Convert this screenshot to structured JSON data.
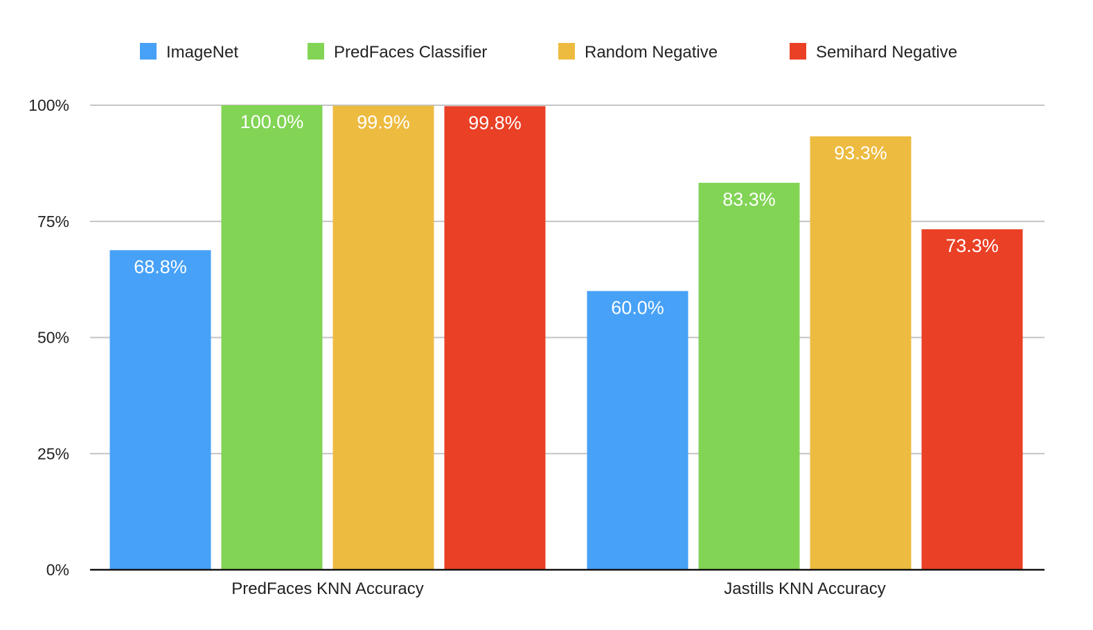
{
  "chart_data": {
    "type": "bar",
    "categories": [
      "PredFaces KNN Accuracy",
      "Jastills KNN Accuracy"
    ],
    "series": [
      {
        "name": "ImageNet",
        "color": "#47a1f7",
        "values": [
          68.8,
          60.0
        ],
        "labels": [
          "68.8%",
          "60.0%"
        ]
      },
      {
        "name": "PredFaces Classifier",
        "color": "#82d455",
        "values": [
          100.0,
          83.3
        ],
        "labels": [
          "100.0%",
          "83.3%"
        ]
      },
      {
        "name": "Random Negative",
        "color": "#edbb40",
        "values": [
          99.9,
          93.3
        ],
        "labels": [
          "99.9%",
          "93.3%"
        ]
      },
      {
        "name": "Semihard Negative",
        "color": "#e94026",
        "values": [
          99.8,
          73.3
        ],
        "labels": [
          "99.8%",
          "73.3%"
        ]
      }
    ],
    "ylim": [
      0,
      100
    ],
    "yticks": [
      0,
      25,
      50,
      75,
      100
    ],
    "ytick_labels": [
      "0%",
      "25%",
      "50%",
      "75%",
      "100%"
    ],
    "grid": true,
    "legend_position": "top",
    "title": "",
    "xlabel": "",
    "ylabel": ""
  }
}
